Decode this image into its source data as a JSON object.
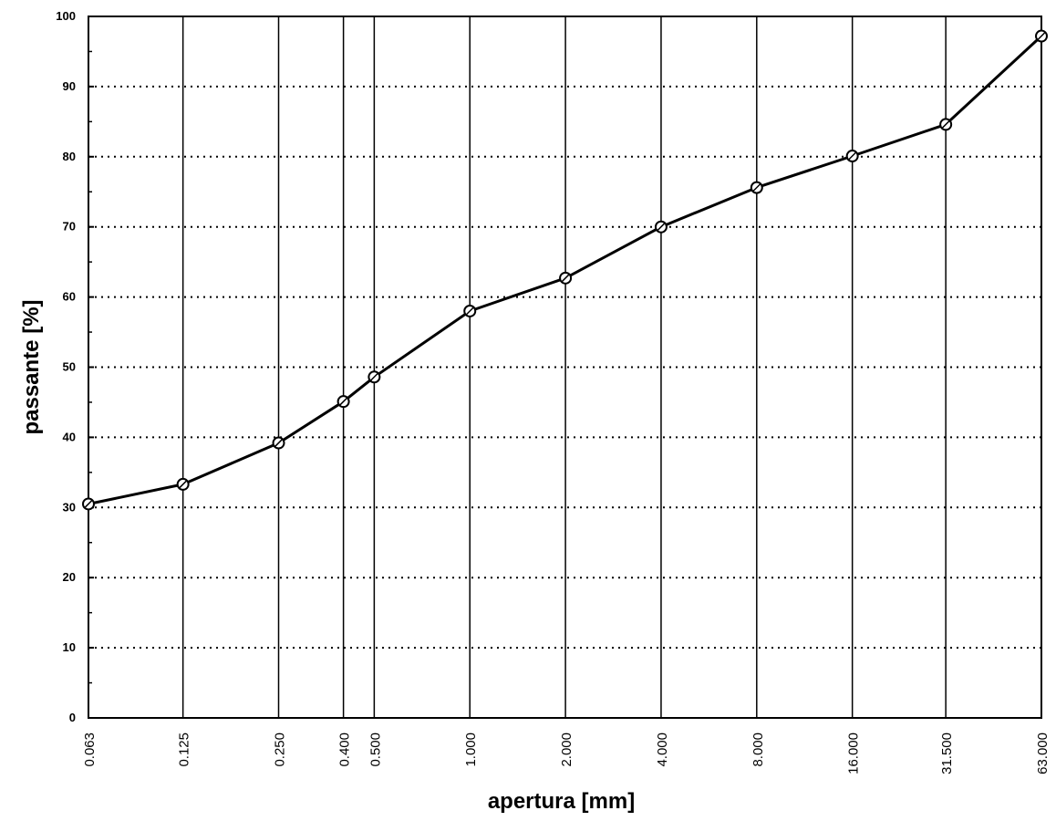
{
  "chart_data": {
    "type": "line",
    "title": "",
    "xlabel": "apertura [mm]",
    "ylabel": "passante [%]",
    "x_scale": "log",
    "ylim": [
      0,
      100
    ],
    "yticks": [
      "0",
      "10",
      "20",
      "30",
      "40",
      "50",
      "60",
      "70",
      "80",
      "90",
      "100"
    ],
    "xticks": [
      "0.063",
      "0.125",
      "0.250",
      "0.400",
      "0.500",
      "1.000",
      "2.000",
      "4.000",
      "8.000",
      "16.000",
      "31.500",
      "63.000"
    ],
    "x": [
      0.063,
      0.125,
      0.25,
      0.4,
      0.5,
      1.0,
      2.0,
      4.0,
      8.0,
      16.0,
      31.5,
      63.0
    ],
    "series": [
      {
        "values": [
          30.5,
          33.3,
          39.2,
          45.1,
          48.6,
          58.0,
          62.7,
          70.0,
          75.6,
          80.1,
          84.6,
          97.2
        ]
      }
    ],
    "grid": true,
    "line_color": "#000000",
    "marker": "circle-cross"
  }
}
